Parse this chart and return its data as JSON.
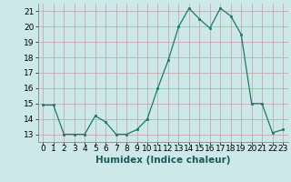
{
  "x": [
    0,
    1,
    2,
    3,
    4,
    5,
    6,
    7,
    8,
    9,
    10,
    11,
    12,
    13,
    14,
    15,
    16,
    17,
    18,
    19,
    20,
    21,
    22,
    23
  ],
  "y": [
    14.9,
    14.9,
    13.0,
    13.0,
    13.0,
    14.2,
    13.8,
    13.0,
    13.0,
    13.3,
    14.0,
    16.0,
    17.8,
    20.0,
    21.2,
    20.5,
    19.9,
    21.2,
    20.7,
    19.5,
    15.0,
    15.0,
    13.1,
    13.3
  ],
  "line_color": "#1a7a6a",
  "marker_color": "#1a7a6a",
  "bg_color": "#cce8e8",
  "grid_color": "#c4a0a0",
  "xlabel": "Humidex (Indice chaleur)",
  "ylim": [
    12.5,
    21.5
  ],
  "xlim": [
    -0.5,
    23.5
  ],
  "yticks": [
    13,
    14,
    15,
    16,
    17,
    18,
    19,
    20,
    21
  ],
  "xtick_labels": [
    "0",
    "1",
    "2",
    "3",
    "4",
    "5",
    "6",
    "7",
    "8",
    "9",
    "10",
    "11",
    "12",
    "13",
    "14",
    "15",
    "16",
    "17",
    "18",
    "19",
    "20",
    "21",
    "22",
    "23"
  ],
  "font_size": 6.5,
  "xlabel_fontsize": 7.5
}
